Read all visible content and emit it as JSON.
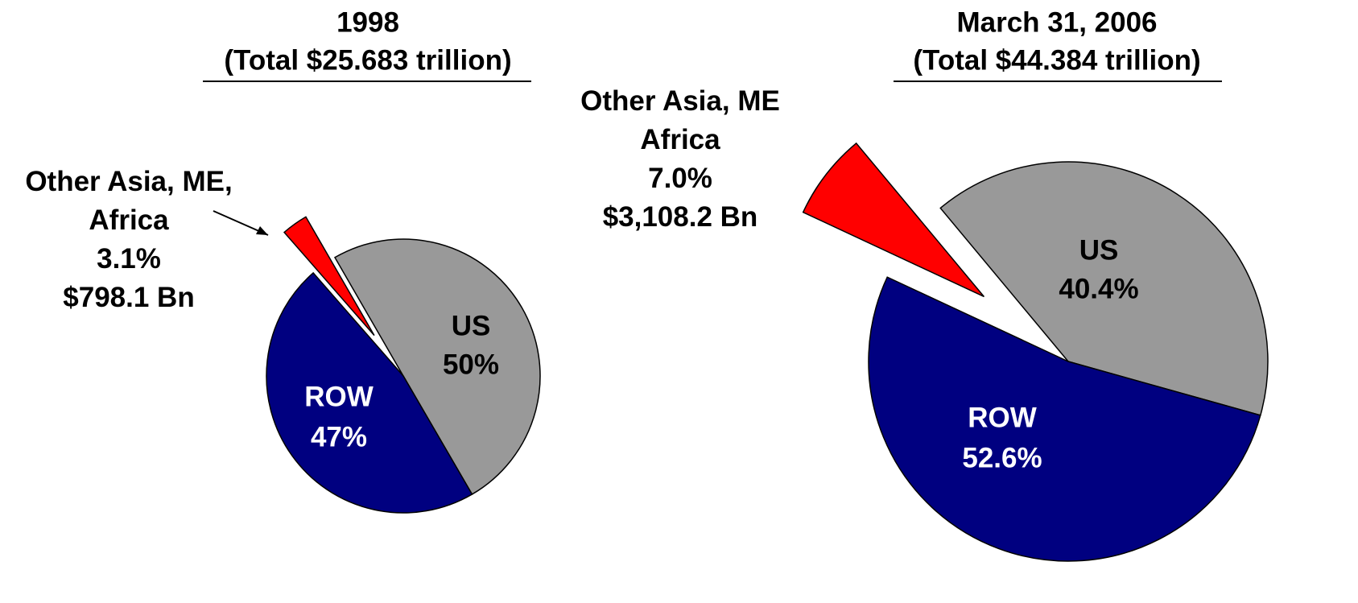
{
  "chart_data": [
    {
      "type": "pie",
      "title": "1998",
      "subtitle": "(Total $25.683 trillion)",
      "categories": [
        "US",
        "ROW",
        "Other Asia, ME, Africa"
      ],
      "values": [
        50,
        47,
        3.1
      ],
      "value_labels": [
        "50%",
        "47%",
        "3.1%"
      ],
      "colors": [
        "#999999",
        "#000080",
        "#ff0000"
      ],
      "annotation": "$798.1 Bn"
    },
    {
      "type": "pie",
      "title": "March 31, 2006",
      "subtitle": "(Total $44.384 trillion)",
      "categories": [
        "US",
        "ROW",
        "Other Asia, ME Africa"
      ],
      "values": [
        40.4,
        52.6,
        7.0
      ],
      "value_labels": [
        "40.4%",
        "52.6%",
        "7.0%"
      ],
      "colors": [
        "#999999",
        "#000080",
        "#ff0000"
      ],
      "annotation": "$3,108.2 Bn"
    }
  ]
}
